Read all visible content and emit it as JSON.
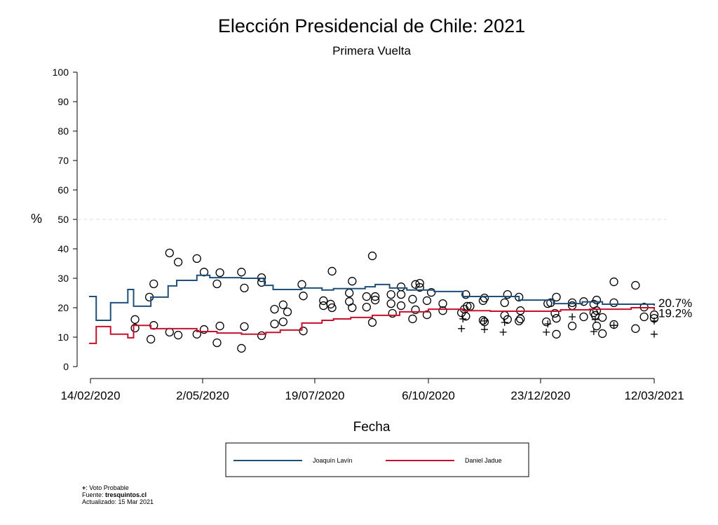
{
  "chart_data": {
    "type": "line",
    "title": "Elección Presidencial de Chile: 2021",
    "subtitle": "Primera Vuelta",
    "xlabel": "Fecha",
    "ylabel": "%",
    "ylim": [
      0,
      100
    ],
    "yticks": [
      "0",
      "10",
      "20",
      "30",
      "40",
      "50",
      "60",
      "70",
      "80",
      "90",
      "100"
    ],
    "xlim": [
      "2020-02-14",
      "2021-03-12"
    ],
    "xticks": [
      {
        "date": "2020-02-14",
        "label": "14/02/2020"
      },
      {
        "date": "2020-05-02",
        "label": "2/05/2020"
      },
      {
        "date": "2020-07-19",
        "label": "19/07/2020"
      },
      {
        "date": "2020-10-06",
        "label": "6/10/2020"
      },
      {
        "date": "2020-12-23",
        "label": "23/12/2020"
      },
      {
        "date": "2021-03-12",
        "label": "12/03/2021"
      }
    ],
    "reference_line": 50,
    "grid": false,
    "legend_position": "bottom",
    "series": [
      {
        "name": "Joaquín Lavín",
        "color": "#1f4e79",
        "end_label": "20.7%",
        "step": true,
        "points": [
          [
            "2020-02-13",
            23.8
          ],
          [
            "2020-02-18",
            15.7
          ],
          [
            "2020-02-28",
            21.7
          ],
          [
            "2020-03-11",
            26.2
          ],
          [
            "2020-03-15",
            20.5
          ],
          [
            "2020-03-27",
            23.6
          ],
          [
            "2020-04-08",
            27.4
          ],
          [
            "2020-04-14",
            29.3
          ],
          [
            "2020-04-28",
            31.0
          ],
          [
            "2020-05-07",
            30.2
          ],
          [
            "2020-05-29",
            30.0
          ],
          [
            "2020-06-14",
            27.6
          ],
          [
            "2020-06-20",
            26.2
          ],
          [
            "2020-07-10",
            26.7
          ],
          [
            "2020-07-24",
            26.0
          ],
          [
            "2020-08-01",
            26.5
          ],
          [
            "2020-08-23",
            27.1
          ],
          [
            "2020-08-30",
            27.9
          ],
          [
            "2020-09-09",
            26.7
          ],
          [
            "2020-09-21",
            26.0
          ],
          [
            "2020-10-10",
            25.5
          ],
          [
            "2020-10-30",
            23.8
          ],
          [
            "2020-12-08",
            22.6
          ],
          [
            "2021-01-01",
            21.4
          ],
          [
            "2021-01-21",
            22.0
          ],
          [
            "2021-02-04",
            21.2
          ],
          [
            "2021-02-24",
            21.2
          ],
          [
            "2021-03-12",
            20.7
          ]
        ]
      },
      {
        "name": "Daniel Jadue",
        "color": "#c8102e",
        "end_label": "19.2%",
        "step": true,
        "points": [
          [
            "2020-02-13",
            7.9
          ],
          [
            "2020-02-18",
            13.6
          ],
          [
            "2020-02-28",
            11.0
          ],
          [
            "2020-03-11",
            9.8
          ],
          [
            "2020-03-15",
            14.0
          ],
          [
            "2020-03-27",
            12.9
          ],
          [
            "2020-04-28",
            11.9
          ],
          [
            "2020-05-12",
            11.4
          ],
          [
            "2020-05-29",
            11.0
          ],
          [
            "2020-06-15",
            11.6
          ],
          [
            "2020-06-25",
            12.4
          ],
          [
            "2020-07-10",
            14.8
          ],
          [
            "2020-07-24",
            15.7
          ],
          [
            "2020-08-01",
            16.2
          ],
          [
            "2020-08-13",
            16.7
          ],
          [
            "2020-08-28",
            17.4
          ],
          [
            "2020-09-16",
            18.6
          ],
          [
            "2020-10-06",
            19.5
          ],
          [
            "2020-10-30",
            19.0
          ],
          [
            "2020-11-18",
            18.8
          ],
          [
            "2021-01-01",
            18.8
          ],
          [
            "2021-01-06",
            19.3
          ],
          [
            "2021-01-26",
            19.5
          ],
          [
            "2021-02-24",
            20.0
          ],
          [
            "2021-03-12",
            19.2
          ]
        ]
      }
    ],
    "polls": [
      [
        "2020-03-16",
        16.0
      ],
      [
        "2020-03-16",
        13.1
      ],
      [
        "2020-03-26",
        23.6
      ],
      [
        "2020-03-29",
        28.1
      ],
      [
        "2020-03-29",
        14.0
      ],
      [
        "2020-03-27",
        9.3
      ],
      [
        "2020-04-09",
        38.6
      ],
      [
        "2020-04-15",
        35.5
      ],
      [
        "2020-04-09",
        11.7
      ],
      [
        "2020-04-15",
        10.7
      ],
      [
        "2020-04-28",
        36.7
      ],
      [
        "2020-05-03",
        32.1
      ],
      [
        "2020-05-03",
        12.6
      ],
      [
        "2020-04-28",
        11.0
      ],
      [
        "2020-05-14",
        31.9
      ],
      [
        "2020-05-12",
        28.1
      ],
      [
        "2020-05-14",
        13.8
      ],
      [
        "2020-05-12",
        8.1
      ],
      [
        "2020-05-29",
        32.1
      ],
      [
        "2020-05-31",
        26.7
      ],
      [
        "2020-05-31",
        13.6
      ],
      [
        "2020-05-29",
        6.2
      ],
      [
        "2020-06-12",
        28.6
      ],
      [
        "2020-06-12",
        30.2
      ],
      [
        "2020-06-12",
        10.5
      ],
      [
        "2020-06-21",
        19.5
      ],
      [
        "2020-06-27",
        21.0
      ],
      [
        "2020-06-27",
        15.2
      ],
      [
        "2020-06-21",
        14.5
      ],
      [
        "2020-06-30",
        18.6
      ],
      [
        "2020-07-10",
        27.9
      ],
      [
        "2020-07-11",
        24.0
      ],
      [
        "2020-07-11",
        12.1
      ],
      [
        "2020-07-25",
        22.4
      ],
      [
        "2020-07-25",
        20.7
      ],
      [
        "2020-07-30",
        21.2
      ],
      [
        "2020-07-31",
        20.0
      ],
      [
        "2020-07-31",
        32.4
      ],
      [
        "2020-08-12",
        25.0
      ],
      [
        "2020-08-12",
        22.1
      ],
      [
        "2020-08-14",
        29.0
      ],
      [
        "2020-08-14",
        20.0
      ],
      [
        "2020-08-24",
        23.8
      ],
      [
        "2020-08-24",
        20.2
      ],
      [
        "2020-08-28",
        37.6
      ],
      [
        "2020-08-28",
        15.0
      ],
      [
        "2020-08-30",
        23.8
      ],
      [
        "2020-08-30",
        22.6
      ],
      [
        "2020-09-10",
        24.5
      ],
      [
        "2020-09-10",
        21.4
      ],
      [
        "2020-09-11",
        18.1
      ],
      [
        "2020-09-17",
        27.1
      ],
      [
        "2020-09-17",
        20.7
      ],
      [
        "2020-09-17",
        24.5
      ],
      [
        "2020-09-25",
        22.9
      ],
      [
        "2020-09-25",
        16.2
      ],
      [
        "2020-09-27",
        27.9
      ],
      [
        "2020-09-30",
        28.3
      ],
      [
        "2020-09-27",
        19.3
      ],
      [
        "2020-09-30",
        26.9
      ],
      [
        "2020-10-05",
        22.4
      ],
      [
        "2020-10-05",
        17.6
      ],
      [
        "2020-10-08",
        25.2
      ],
      [
        "2020-10-16",
        21.4
      ],
      [
        "2020-10-16",
        19.0
      ],
      [
        "2020-10-29",
        18.3
      ],
      [
        "2020-10-31",
        19.5
      ],
      [
        "2020-11-01",
        24.5
      ],
      [
        "2020-11-01",
        17.1
      ],
      [
        "2020-11-02",
        20.5
      ],
      [
        "2020-11-04",
        20.5
      ],
      [
        "2020-11-13",
        15.7
      ],
      [
        "2020-11-14",
        15.2
      ],
      [
        "2020-11-14",
        23.3
      ],
      [
        "2020-11-13",
        22.4
      ],
      [
        "2020-11-28",
        21.7
      ],
      [
        "2020-11-28",
        17.4
      ],
      [
        "2020-11-30",
        24.5
      ],
      [
        "2020-11-30",
        16.0
      ],
      [
        "2020-12-08",
        23.6
      ],
      [
        "2020-12-09",
        19.0
      ],
      [
        "2020-12-08",
        15.5
      ],
      [
        "2020-12-09",
        16.2
      ],
      [
        "2020-12-27",
        15.2
      ],
      [
        "2020-12-28",
        21.4
      ],
      [
        "2020-12-30",
        21.7
      ],
      [
        "2021-01-03",
        23.6
      ],
      [
        "2021-01-03",
        16.4
      ],
      [
        "2021-01-03",
        11.0
      ],
      [
        "2021-01-02",
        18.1
      ],
      [
        "2021-01-14",
        21.7
      ],
      [
        "2021-01-14",
        13.8
      ],
      [
        "2021-01-14",
        20.7
      ],
      [
        "2021-01-22",
        22.1
      ],
      [
        "2021-01-22",
        16.9
      ],
      [
        "2021-01-29",
        21.2
      ],
      [
        "2021-01-29",
        18.3
      ],
      [
        "2021-01-30",
        17.4
      ],
      [
        "2021-01-31",
        22.6
      ],
      [
        "2021-01-31",
        19.0
      ],
      [
        "2021-01-31",
        13.8
      ],
      [
        "2021-02-04",
        16.7
      ],
      [
        "2021-02-04",
        11.2
      ],
      [
        "2021-02-12",
        28.8
      ],
      [
        "2021-02-12",
        21.7
      ],
      [
        "2021-02-12",
        14.3
      ],
      [
        "2021-02-27",
        27.6
      ],
      [
        "2021-02-27",
        12.9
      ],
      [
        "2021-03-05",
        20.2
      ],
      [
        "2021-03-05",
        16.9
      ],
      [
        "2021-03-12",
        17.6
      ],
      [
        "2021-03-12",
        16.4
      ]
    ],
    "probable_vote": [
      [
        "2020-10-29",
        12.9
      ],
      [
        "2020-10-30",
        16.2
      ],
      [
        "2020-11-14",
        12.6
      ],
      [
        "2020-11-14",
        15.5
      ],
      [
        "2020-11-27",
        11.7
      ],
      [
        "2020-11-28",
        15.0
      ],
      [
        "2020-12-27",
        11.7
      ],
      [
        "2020-12-28",
        14.5
      ],
      [
        "2021-01-14",
        16.9
      ],
      [
        "2021-01-29",
        11.9
      ],
      [
        "2021-01-30",
        16.0
      ],
      [
        "2021-02-12",
        14.0
      ],
      [
        "2021-03-12",
        11.0
      ],
      [
        "2021-03-12",
        15.5
      ]
    ]
  },
  "footer": {
    "marker_symbol": "+",
    "marker_text": ": Voto Probable",
    "source_prefix": "Fuente: ",
    "source": "tresquintos.cl",
    "updated": "Actualizado: 15 Mar 2021"
  }
}
